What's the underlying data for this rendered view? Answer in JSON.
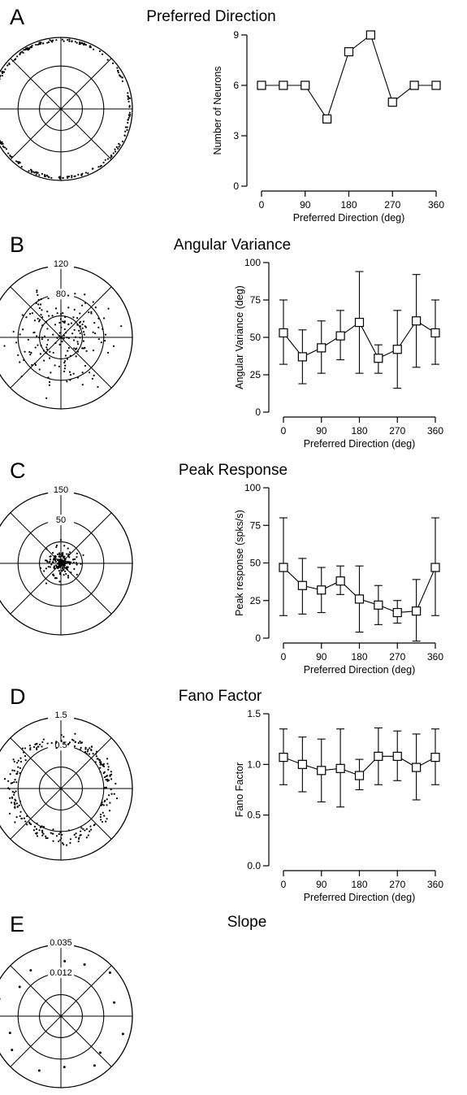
{
  "chart_data": [
    {
      "panel": "A",
      "title": "Preferred Direction",
      "type": "line",
      "xlabel": "Preferred Direction (deg)",
      "ylabel": "Number of Neurons",
      "xlim": [
        0,
        360
      ],
      "ylim": [
        0,
        9
      ],
      "xticks": [
        "0",
        "90",
        "180",
        "270",
        "360"
      ],
      "yticks": [
        "0",
        "3",
        "6",
        "9"
      ],
      "x": [
        0,
        45,
        90,
        135,
        180,
        225,
        270,
        315,
        360
      ],
      "values": [
        6,
        6,
        6,
        4,
        8,
        9,
        5,
        6,
        6
      ],
      "polar": {
        "ring_labels": [],
        "distribution": "points on outer ring"
      }
    },
    {
      "panel": "B",
      "title": "Angular Variance",
      "type": "line",
      "xlabel": "Preferred Direction (deg)",
      "ylabel": "Angular Variance (deg)",
      "xlim": [
        0,
        360
      ],
      "ylim": [
        0,
        100
      ],
      "xticks": [
        "0",
        "90",
        "180",
        "270",
        "360"
      ],
      "yticks": [
        "0",
        "25",
        "50",
        "75",
        "100"
      ],
      "x": [
        0,
        45,
        90,
        135,
        180,
        225,
        270,
        315,
        360
      ],
      "values": [
        53,
        37,
        43,
        51,
        60,
        36,
        42,
        61,
        53
      ],
      "err_low": [
        32,
        19,
        26,
        35,
        26,
        26,
        16,
        30,
        32
      ],
      "err_high": [
        75,
        55,
        61,
        68,
        94,
        45,
        68,
        92,
        75
      ],
      "polar": {
        "ring_labels": [
          "120",
          "80"
        ],
        "distribution": "scattered 10-110, mean 55"
      }
    },
    {
      "panel": "C",
      "title": "Peak Response",
      "type": "line",
      "xlabel": "Preferred Direction (deg)",
      "ylabel": "Peak response (spks/s)",
      "xlim": [
        0,
        360
      ],
      "ylim": [
        0,
        100
      ],
      "xticks": [
        "0",
        "90",
        "180",
        "270",
        "360"
      ],
      "yticks": [
        "0",
        "25",
        "50",
        "75",
        "100"
      ],
      "x": [
        0,
        45,
        90,
        135,
        180,
        225,
        270,
        315,
        360
      ],
      "values": [
        47,
        35,
        32,
        38,
        26,
        22,
        17,
        18,
        47
      ],
      "err_low": [
        15,
        16,
        17,
        29,
        4,
        9,
        10,
        -2,
        15
      ],
      "err_high": [
        80,
        53,
        47,
        48,
        48,
        35,
        25,
        39,
        80
      ],
      "polar": {
        "ring_labels": [
          "150",
          "50"
        ],
        "distribution": "clustered near centre"
      }
    },
    {
      "panel": "D",
      "title": "Fano Factor",
      "type": "line",
      "xlabel": "Preferred Direction (deg)",
      "ylabel": "Fano Factor",
      "xlim": [
        0,
        360
      ],
      "ylim": [
        0,
        1.5
      ],
      "xticks": [
        "0",
        "90",
        "180",
        "270",
        "360"
      ],
      "yticks": [
        "0.0",
        "0.5",
        "1.0",
        "1.5"
      ],
      "x": [
        0,
        45,
        90,
        135,
        180,
        225,
        270,
        315,
        360
      ],
      "values": [
        1.07,
        1.0,
        0.94,
        0.96,
        0.89,
        1.08,
        1.08,
        0.97,
        1.07
      ],
      "err_low": [
        0.8,
        0.73,
        0.63,
        0.58,
        0.75,
        0.8,
        0.84,
        0.65,
        0.8
      ],
      "err_high": [
        1.35,
        1.27,
        1.25,
        1.35,
        1.05,
        1.36,
        1.33,
        1.3,
        1.35
      ],
      "polar": {
        "ring_labels": [
          "1.5",
          "0.5"
        ],
        "distribution": "annulus near 1.0"
      }
    },
    {
      "panel": "E",
      "title": "Slope",
      "type": "scatter",
      "polar": {
        "ring_labels": [
          "0.035",
          "0.012"
        ],
        "distribution": "sparse points 0.02-0.035"
      }
    }
  ]
}
